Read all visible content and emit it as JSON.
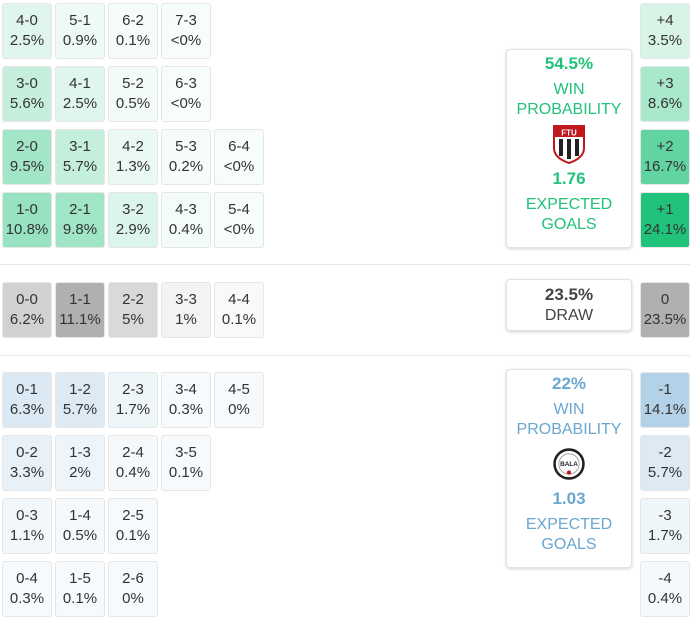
{
  "home": {
    "win_pct": "54.5%",
    "win_label": [
      "WIN",
      "PROBABILITY"
    ],
    "xg": "1.76",
    "xg_label": [
      "EXPECTED",
      "GOALS"
    ],
    "crest_text": "FTU",
    "color": "#21c27a"
  },
  "draw": {
    "pct": "23.5%",
    "label": "DRAW"
  },
  "away": {
    "win_pct": "22%",
    "win_label": [
      "WIN",
      "PROBABILITY"
    ],
    "xg": "1.03",
    "xg_label": [
      "EXPECTED",
      "GOALS"
    ],
    "crest_text": "BALA",
    "color": "#6aa6cf"
  },
  "home_scores": [
    [
      {
        "s": "4-0",
        "p": "2.5%"
      },
      {
        "s": "5-1",
        "p": "0.9%"
      },
      {
        "s": "6-2",
        "p": "0.1%"
      },
      {
        "s": "7-3",
        "p": "<0%"
      }
    ],
    [
      {
        "s": "3-0",
        "p": "5.6%"
      },
      {
        "s": "4-1",
        "p": "2.5%"
      },
      {
        "s": "5-2",
        "p": "0.5%"
      },
      {
        "s": "6-3",
        "p": "<0%"
      }
    ],
    [
      {
        "s": "2-0",
        "p": "9.5%"
      },
      {
        "s": "3-1",
        "p": "5.7%"
      },
      {
        "s": "4-2",
        "p": "1.3%"
      },
      {
        "s": "5-3",
        "p": "0.2%"
      },
      {
        "s": "6-4",
        "p": "<0%"
      }
    ],
    [
      {
        "s": "1-0",
        "p": "10.8%"
      },
      {
        "s": "2-1",
        "p": "9.8%"
      },
      {
        "s": "3-2",
        "p": "2.9%"
      },
      {
        "s": "4-3",
        "p": "0.4%"
      },
      {
        "s": "5-4",
        "p": "<0%"
      }
    ]
  ],
  "draw_scores": [
    [
      {
        "s": "0-0",
        "p": "6.2%"
      },
      {
        "s": "1-1",
        "p": "11.1%"
      },
      {
        "s": "2-2",
        "p": "5%"
      },
      {
        "s": "3-3",
        "p": "1%"
      },
      {
        "s": "4-4",
        "p": "0.1%"
      }
    ]
  ],
  "away_scores": [
    [
      {
        "s": "0-1",
        "p": "6.3%"
      },
      {
        "s": "1-2",
        "p": "5.7%"
      },
      {
        "s": "2-3",
        "p": "1.7%"
      },
      {
        "s": "3-4",
        "p": "0.3%"
      },
      {
        "s": "4-5",
        "p": "0%"
      }
    ],
    [
      {
        "s": "0-2",
        "p": "3.3%"
      },
      {
        "s": "1-3",
        "p": "2%"
      },
      {
        "s": "2-4",
        "p": "0.4%"
      },
      {
        "s": "3-5",
        "p": "0.1%"
      }
    ],
    [
      {
        "s": "0-3",
        "p": "1.1%"
      },
      {
        "s": "1-4",
        "p": "0.5%"
      },
      {
        "s": "2-5",
        "p": "0.1%"
      }
    ],
    [
      {
        "s": "0-4",
        "p": "0.3%"
      },
      {
        "s": "1-5",
        "p": "0.1%"
      },
      {
        "s": "2-6",
        "p": "0%"
      }
    ]
  ],
  "margins": [
    {
      "s": "+4",
      "p": "3.5%"
    },
    {
      "s": "+3",
      "p": "8.6%"
    },
    {
      "s": "+2",
      "p": "16.7%"
    },
    {
      "s": "+1",
      "p": "24.1%"
    },
    {
      "s": "0",
      "p": "23.5%"
    },
    {
      "s": "-1",
      "p": "14.1%"
    },
    {
      "s": "-2",
      "p": "5.7%"
    },
    {
      "s": "-3",
      "p": "1.7%"
    },
    {
      "s": "-4",
      "p": "0.4%"
    }
  ]
}
